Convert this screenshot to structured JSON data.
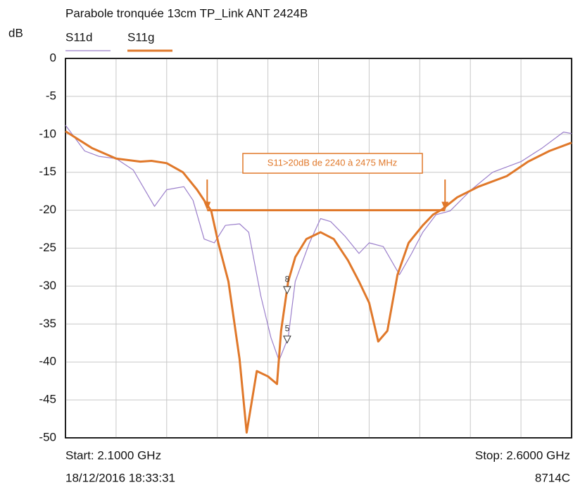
{
  "chart_data": {
    "type": "line",
    "title": "Parabole tronquée 13cm TP_Link ANT 2424B",
    "y_label": "dB",
    "xlim": [
      2100,
      2600
    ],
    "xticks": [
      2100,
      2150,
      2200,
      2250,
      2300,
      2350,
      2400,
      2450,
      2500,
      2550,
      2600
    ],
    "ylim": [
      -50,
      0
    ],
    "yticks": [
      0,
      -5,
      -10,
      -15,
      -20,
      -25,
      -30,
      -35,
      -40,
      -45,
      -50
    ],
    "grid": true,
    "series": [
      {
        "name": "S11d",
        "color": "#9b7fcb",
        "x": [
          2100,
          2119,
          2133,
          2150,
          2167,
          2188,
          2200,
          2217,
          2226,
          2237,
          2247,
          2258,
          2272,
          2281,
          2293,
          2303,
          2311,
          2320,
          2327,
          2341,
          2352,
          2362,
          2376,
          2390,
          2400,
          2414,
          2430,
          2442,
          2453,
          2466,
          2480,
          2501,
          2522,
          2550,
          2571,
          2592,
          2600
        ],
        "values": [
          -8.8,
          -12.2,
          -12.9,
          -13.2,
          -14.7,
          -19.5,
          -17.3,
          -16.9,
          -18.7,
          -23.8,
          -24.3,
          -22.0,
          -21.8,
          -22.9,
          -31.3,
          -36.8,
          -39.8,
          -36.8,
          -29.4,
          -24.3,
          -21.1,
          -21.5,
          -23.4,
          -25.7,
          -24.3,
          -24.8,
          -28.5,
          -25.7,
          -22.9,
          -20.6,
          -20.1,
          -17.3,
          -15.0,
          -13.6,
          -11.8,
          -9.7,
          -9.9
        ]
      },
      {
        "name": "S11g",
        "color": "#e0782a",
        "x": [
          2100,
          2126,
          2150,
          2174,
          2185,
          2200,
          2216,
          2230,
          2244,
          2251,
          2261,
          2272,
          2279,
          2289,
          2300,
          2309,
          2313,
          2320,
          2327,
          2338,
          2352,
          2365,
          2379,
          2390,
          2400,
          2409,
          2418,
          2428,
          2439,
          2453,
          2463,
          2472,
          2487,
          2508,
          2536,
          2557,
          2578,
          2600
        ],
        "values": [
          -9.6,
          -11.8,
          -13.2,
          -13.6,
          -13.5,
          -13.8,
          -15.0,
          -17.3,
          -20.1,
          -24.3,
          -29.4,
          -39.6,
          -49.3,
          -41.2,
          -41.9,
          -42.9,
          -35.9,
          -29.4,
          -26.2,
          -23.8,
          -22.9,
          -23.8,
          -26.6,
          -29.4,
          -32.2,
          -37.3,
          -35.9,
          -28.5,
          -24.3,
          -22.0,
          -20.6,
          -19.9,
          -18.3,
          -16.9,
          -15.5,
          -13.6,
          -12.2,
          -11.1
        ]
      }
    ],
    "annotation": {
      "text": "S11>20dB de 2240 à 2475 MHz",
      "x_start": 2240,
      "x_end": 2475,
      "y": -20
    },
    "markers": [
      {
        "label": "8",
        "x": 2319,
        "y": -31
      },
      {
        "label": "5",
        "x": 2319,
        "y": -37.5
      }
    ],
    "start_label": "Start: 2.1000 GHz",
    "stop_label": "Stop: 2.6000 GHz",
    "timestamp": "18/12/2016 18:33:31",
    "instrument": "8714C"
  }
}
